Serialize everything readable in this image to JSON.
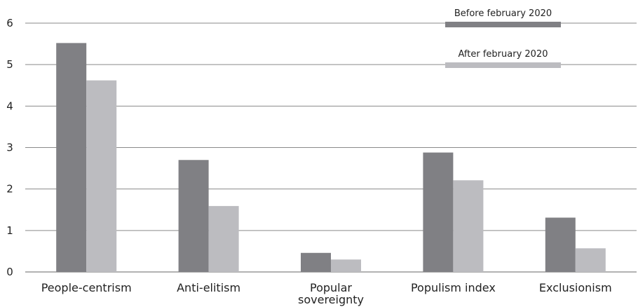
{
  "chart_data": {
    "type": "bar",
    "categories": [
      [
        "People-centrism"
      ],
      [
        "Anti-elitism"
      ],
      [
        "Popular",
        "sovereignty"
      ],
      [
        "Populism index"
      ],
      [
        "Exclusionism"
      ]
    ],
    "series": [
      {
        "name": "Before february 2020",
        "color": "#808084",
        "values": [
          5.52,
          2.7,
          0.46,
          2.88,
          1.31
        ]
      },
      {
        "name": "After february 2020",
        "color": "#bcbcc0",
        "values": [
          4.62,
          1.59,
          0.3,
          2.21,
          0.57
        ]
      }
    ],
    "yticks": [
      "0",
      "1",
      "2",
      "3",
      "4",
      "5",
      "6"
    ],
    "ylim": [
      0,
      6
    ],
    "grid": true,
    "legend_position": "top-right"
  }
}
